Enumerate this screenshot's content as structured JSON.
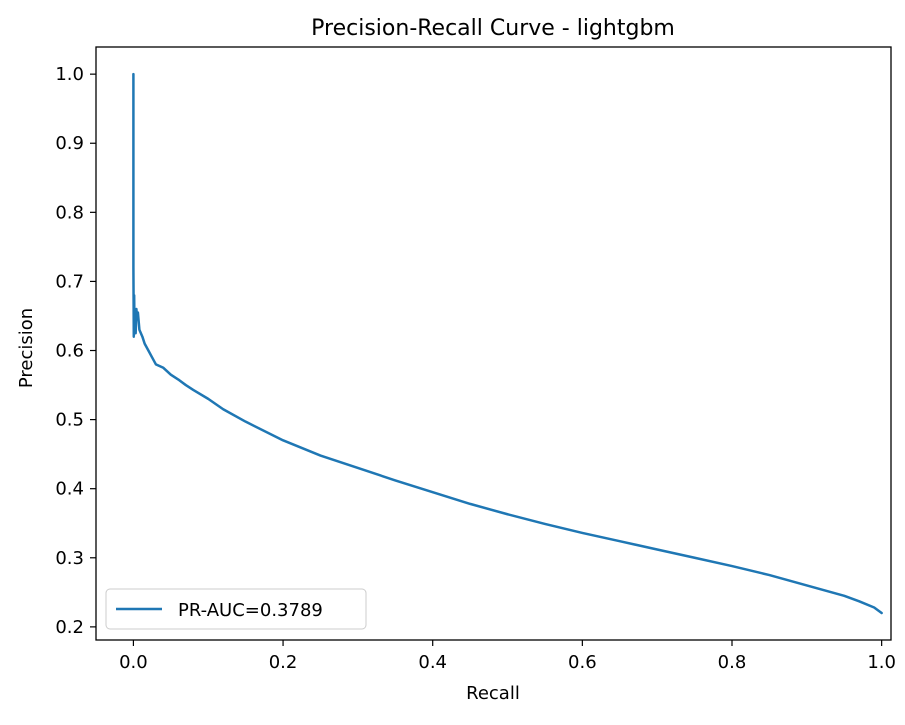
{
  "chart_data": {
    "type": "line",
    "title": "Precision-Recall Curve - lightgbm",
    "xlabel": "Recall",
    "ylabel": "Precision",
    "xlim": [
      -0.05,
      1.0125
    ],
    "ylim": [
      0.181,
      1.0393
    ],
    "xticks": [
      0.0,
      0.2,
      0.4,
      0.6,
      0.8,
      1.0
    ],
    "xtick_labels": [
      "0.0",
      "0.2",
      "0.4",
      "0.6",
      "0.8",
      "1.0"
    ],
    "yticks": [
      0.2,
      0.3,
      0.4,
      0.5,
      0.6,
      0.7,
      0.8,
      0.9,
      1.0
    ],
    "ytick_labels": [
      "0.2",
      "0.3",
      "0.4",
      "0.5",
      "0.6",
      "0.7",
      "0.8",
      "0.9",
      "1.0"
    ],
    "grid": false,
    "legend_position": "lower left",
    "series": [
      {
        "name": "PR-AUC=0.3789",
        "color": "#1f77b4",
        "x": [
          0.0,
          0.0,
          0.0005,
          0.001,
          0.0015,
          0.002,
          0.003,
          0.004,
          0.005,
          0.006,
          0.008,
          0.01,
          0.012,
          0.015,
          0.02,
          0.025,
          0.03,
          0.04,
          0.05,
          0.06,
          0.07,
          0.08,
          0.1,
          0.12,
          0.15,
          0.2,
          0.25,
          0.3,
          0.35,
          0.4,
          0.45,
          0.5,
          0.55,
          0.6,
          0.65,
          0.7,
          0.75,
          0.8,
          0.85,
          0.9,
          0.95,
          0.97,
          0.99,
          1.0
        ],
        "y": [
          1.0,
          0.72,
          0.62,
          0.68,
          0.63,
          0.64,
          0.625,
          0.66,
          0.645,
          0.655,
          0.63,
          0.625,
          0.62,
          0.61,
          0.6,
          0.59,
          0.58,
          0.575,
          0.565,
          0.558,
          0.55,
          0.543,
          0.53,
          0.515,
          0.497,
          0.47,
          0.448,
          0.43,
          0.412,
          0.395,
          0.378,
          0.363,
          0.349,
          0.336,
          0.324,
          0.312,
          0.3,
          0.288,
          0.275,
          0.26,
          0.245,
          0.237,
          0.228,
          0.22
        ]
      }
    ]
  }
}
